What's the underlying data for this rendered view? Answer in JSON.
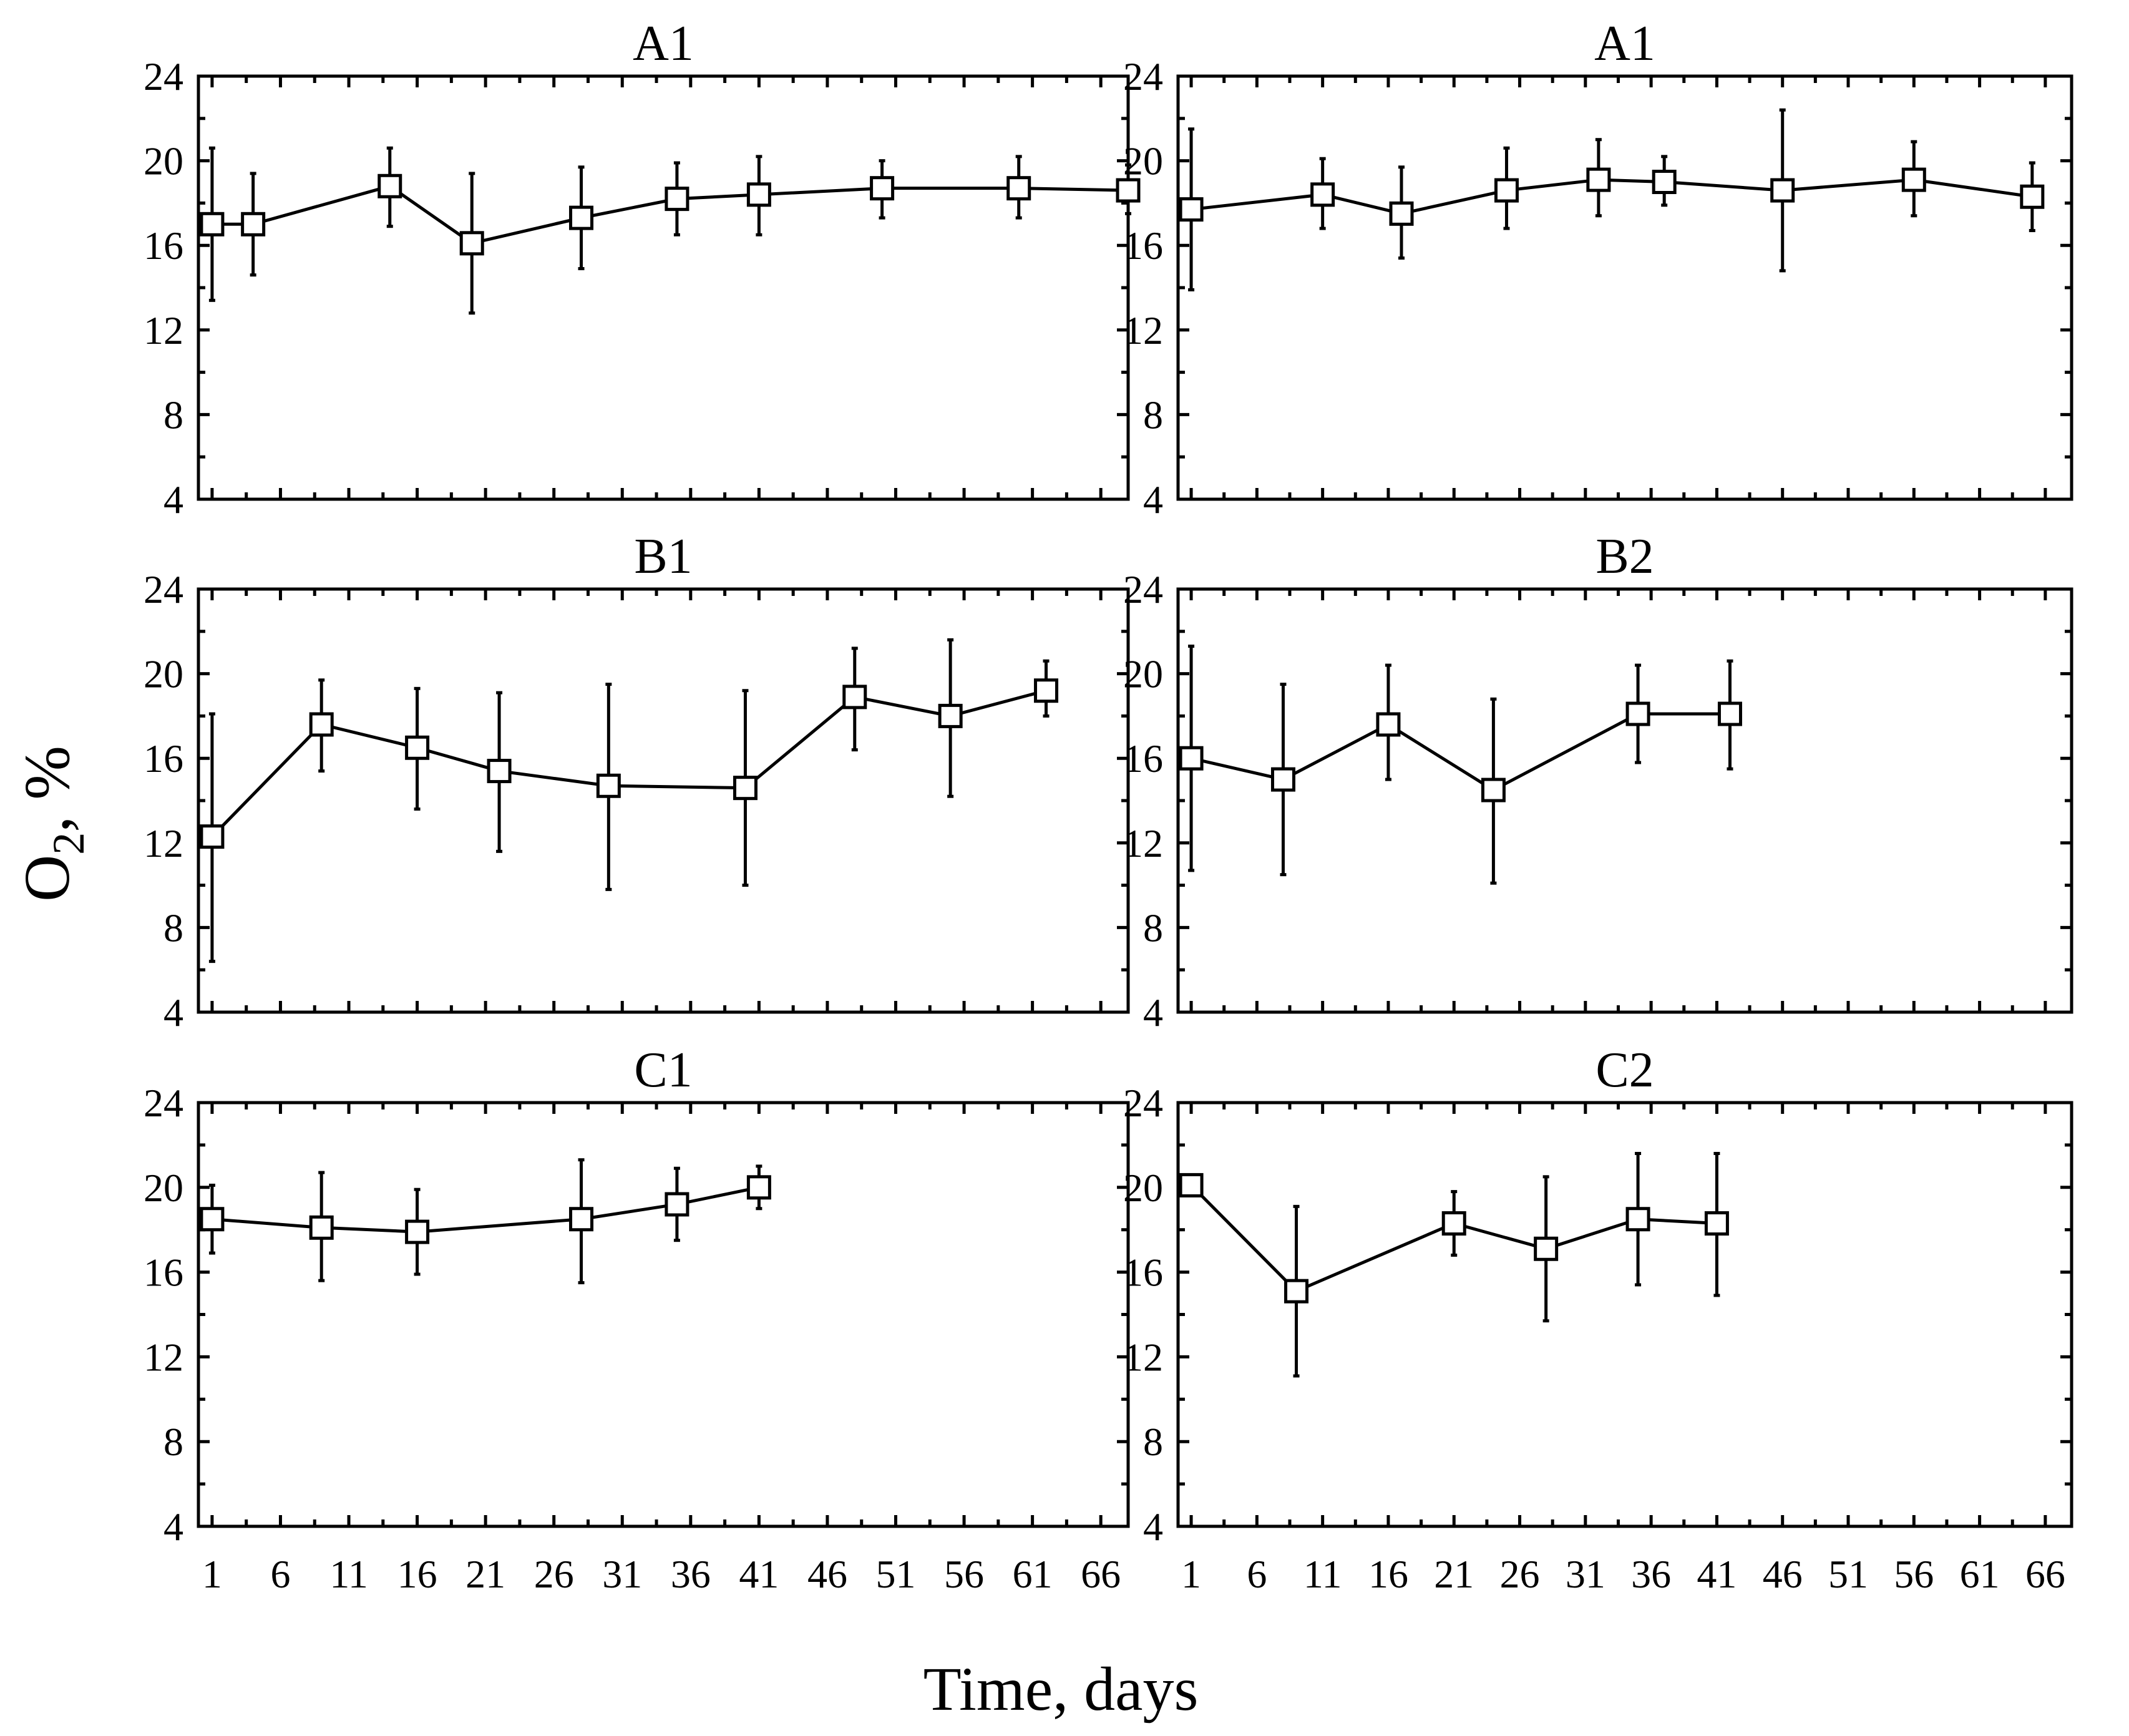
{
  "figure": {
    "ylabel_main": "O",
    "ylabel_sub": "2",
    "ylabel_tail": ", %",
    "xlabel": "Time, days"
  },
  "chart_data": [
    {
      "type": "line",
      "title": "A1",
      "position": "top-left",
      "xlim": [
        0,
        68
      ],
      "ylim": [
        4,
        24
      ],
      "yticks": [
        "4",
        "8",
        "12",
        "16",
        "20",
        "24"
      ],
      "xticks": [
        "1",
        "6",
        "11",
        "16",
        "21",
        "26",
        "31",
        "36",
        "41",
        "46",
        "51",
        "56",
        "61",
        "66"
      ],
      "x": [
        1,
        4,
        14,
        20,
        28,
        35,
        41,
        50,
        60,
        68
      ],
      "y": [
        17.0,
        17.0,
        18.8,
        16.1,
        17.3,
        18.2,
        18.4,
        18.7,
        18.7,
        18.6
      ],
      "err_low": [
        13.4,
        14.6,
        16.9,
        12.8,
        14.9,
        16.5,
        16.5,
        17.3,
        17.3,
        17.5
      ],
      "err_high": [
        20.6,
        19.4,
        20.6,
        19.4,
        19.7,
        19.9,
        20.2,
        20.0,
        20.2,
        19.8
      ]
    },
    {
      "type": "line",
      "title": "A1",
      "position": "top-right",
      "xlim": [
        0,
        68
      ],
      "ylim": [
        4,
        24
      ],
      "yticks": [
        "4",
        "8",
        "12",
        "16",
        "20",
        "24"
      ],
      "xticks": [
        "1",
        "6",
        "11",
        "16",
        "21",
        "26",
        "31",
        "36",
        "41",
        "46",
        "51",
        "56",
        "61",
        "66"
      ],
      "x": [
        1,
        11,
        17,
        25,
        32,
        37,
        46,
        56,
        65
      ],
      "y": [
        17.7,
        18.4,
        17.5,
        18.6,
        19.1,
        19.0,
        18.6,
        19.1,
        18.3
      ],
      "err_low": [
        13.9,
        16.8,
        15.4,
        16.8,
        17.4,
        17.9,
        14.8,
        17.4,
        16.7
      ],
      "err_high": [
        21.5,
        20.1,
        19.7,
        20.6,
        21.0,
        20.2,
        22.4,
        20.9,
        19.9
      ]
    },
    {
      "type": "line",
      "title": "B1",
      "position": "middle-left",
      "xlim": [
        0,
        68
      ],
      "ylim": [
        4,
        24
      ],
      "yticks": [
        "4",
        "8",
        "12",
        "16",
        "20",
        "24"
      ],
      "xticks": [
        "1",
        "6",
        "11",
        "16",
        "21",
        "26",
        "31",
        "36",
        "41",
        "46",
        "51",
        "56",
        "61",
        "66"
      ],
      "x": [
        1,
        9,
        16,
        22,
        30,
        40,
        48,
        55,
        62
      ],
      "y": [
        12.3,
        17.6,
        16.5,
        15.4,
        14.7,
        14.6,
        18.9,
        18.0,
        19.2
      ],
      "err_low": [
        6.4,
        15.4,
        13.6,
        11.6,
        9.8,
        10.0,
        16.4,
        14.2,
        18.0
      ],
      "err_high": [
        18.1,
        19.7,
        19.3,
        19.1,
        19.5,
        19.2,
        21.2,
        21.6,
        20.6
      ]
    },
    {
      "type": "line",
      "title": "B2",
      "position": "middle-right",
      "xlim": [
        0,
        68
      ],
      "ylim": [
        4,
        24
      ],
      "yticks": [
        "4",
        "8",
        "12",
        "16",
        "20",
        "24"
      ],
      "xticks": [
        "1",
        "6",
        "11",
        "16",
        "21",
        "26",
        "31",
        "36",
        "41",
        "46",
        "51",
        "56",
        "61",
        "66"
      ],
      "x": [
        1,
        8,
        16,
        24,
        35,
        42
      ],
      "y": [
        16.0,
        15.0,
        17.6,
        14.5,
        18.1,
        18.1
      ],
      "err_low": [
        10.7,
        10.5,
        15.0,
        10.1,
        15.8,
        15.5
      ],
      "err_high": [
        21.3,
        19.5,
        20.4,
        18.8,
        20.4,
        20.6
      ]
    },
    {
      "type": "line",
      "title": "C1",
      "position": "bottom-left",
      "xlim": [
        0,
        68
      ],
      "ylim": [
        4,
        24
      ],
      "yticks": [
        "4",
        "8",
        "12",
        "16",
        "20",
        "24"
      ],
      "xticks": [
        "1",
        "6",
        "11",
        "16",
        "21",
        "26",
        "31",
        "36",
        "41",
        "46",
        "51",
        "56",
        "61",
        "66"
      ],
      "x": [
        1,
        9,
        16,
        28,
        35,
        41
      ],
      "y": [
        18.5,
        18.1,
        17.9,
        18.5,
        19.2,
        20.0
      ],
      "err_low": [
        16.9,
        15.6,
        15.9,
        15.5,
        17.5,
        19.0
      ],
      "err_high": [
        20.1,
        20.7,
        19.9,
        21.3,
        20.9,
        21.0
      ]
    },
    {
      "type": "line",
      "title": "C2",
      "position": "bottom-right",
      "xlim": [
        0,
        68
      ],
      "ylim": [
        4,
        24
      ],
      "yticks": [
        "4",
        "8",
        "12",
        "16",
        "20",
        "24"
      ],
      "xticks": [
        "1",
        "6",
        "11",
        "16",
        "21",
        "26",
        "31",
        "36",
        "41",
        "46",
        "51",
        "56",
        "61",
        "66"
      ],
      "x": [
        1,
        9,
        21,
        28,
        35,
        41
      ],
      "y": [
        20.1,
        15.1,
        18.3,
        17.1,
        18.5,
        18.3
      ],
      "err_low": [
        20.1,
        11.1,
        16.8,
        13.7,
        15.4,
        14.9
      ],
      "err_high": [
        20.1,
        19.1,
        19.8,
        20.5,
        21.6,
        21.6
      ]
    }
  ]
}
